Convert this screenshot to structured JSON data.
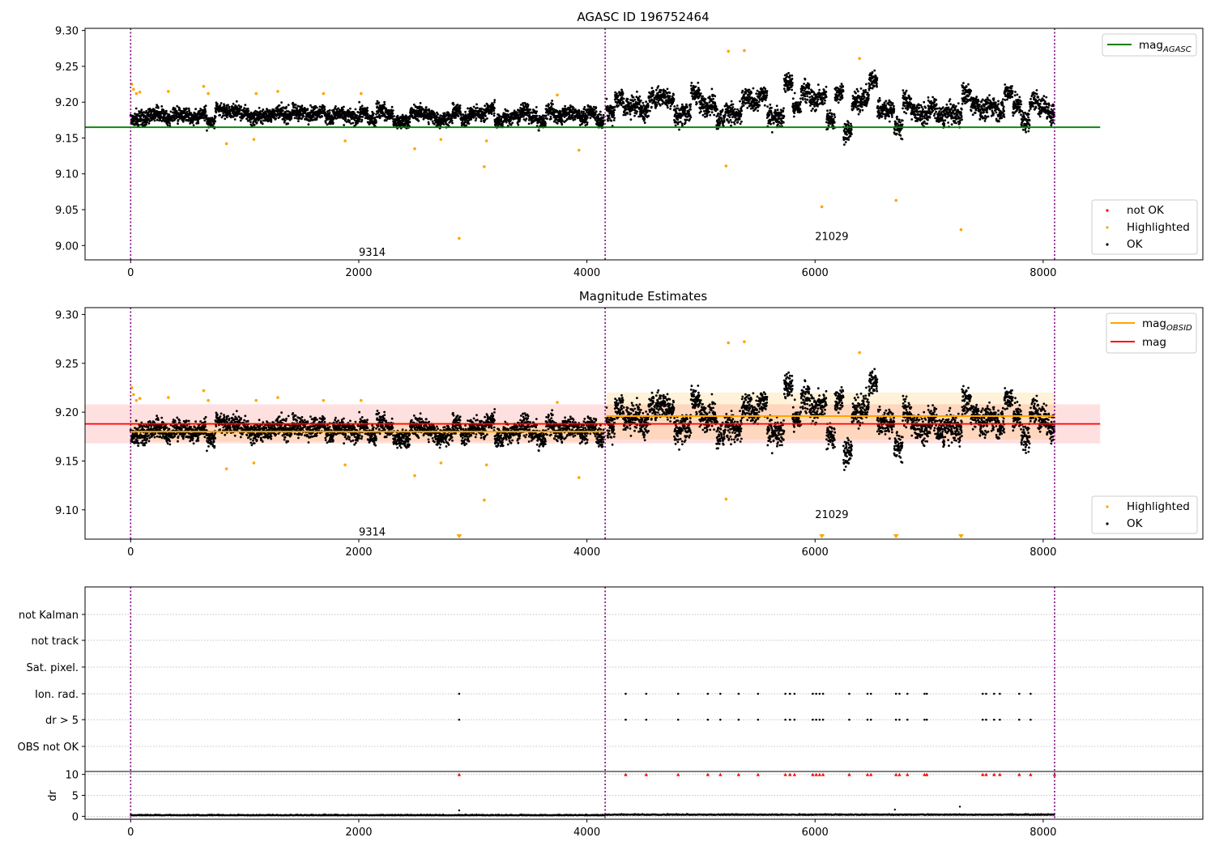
{
  "chart_data": [
    {
      "type": "scatter",
      "title": "AGASC ID 196752464",
      "xlim": [
        -400,
        9400
      ],
      "ylim": [
        8.98,
        9.303
      ],
      "xticks": [
        0,
        2000,
        4000,
        6000,
        8000
      ],
      "yticks": [
        9.0,
        9.05,
        9.1,
        9.15,
        9.2,
        9.25,
        9.3
      ],
      "ytick_labels": [
        "9.00",
        "9.05",
        "9.10",
        "9.15",
        "9.20",
        "9.25",
        "9.30"
      ],
      "xtick_labels": [
        "0",
        "2000",
        "4000",
        "6000",
        "8000"
      ],
      "observation_boundaries": [
        0,
        4160,
        8100
      ],
      "obsid_labels": [
        {
          "x": 2000,
          "y": 8.99,
          "text": "9314"
        },
        {
          "x": 6000,
          "y": 9.012,
          "text": "21029"
        }
      ],
      "reference_lines": [
        {
          "name": "mag_AGASC",
          "y": 9.165,
          "x": [
            -400,
            8500
          ],
          "color": "#008000"
        }
      ],
      "obs_segments": [
        {
          "x_start": 0,
          "x_end": 4150,
          "mean": 9.182,
          "spread": 0.01,
          "oscillation": 0.01
        },
        {
          "x_start": 4170,
          "x_end": 8100,
          "mean": 9.195,
          "spread": 0.014,
          "oscillation": 0.028
        }
      ],
      "highlighted_points": [
        {
          "x": 10,
          "y": 9.225
        },
        {
          "x": 25,
          "y": 9.218
        },
        {
          "x": 50,
          "y": 9.212
        },
        {
          "x": 80,
          "y": 9.214
        },
        {
          "x": 330,
          "y": 9.215
        },
        {
          "x": 640,
          "y": 9.222
        },
        {
          "x": 680,
          "y": 9.212
        },
        {
          "x": 840,
          "y": 9.142
        },
        {
          "x": 1080,
          "y": 9.148
        },
        {
          "x": 1100,
          "y": 9.212
        },
        {
          "x": 1290,
          "y": 9.215
        },
        {
          "x": 1690,
          "y": 9.212
        },
        {
          "x": 1880,
          "y": 9.146
        },
        {
          "x": 2020,
          "y": 9.212
        },
        {
          "x": 2490,
          "y": 9.135
        },
        {
          "x": 2720,
          "y": 9.148
        },
        {
          "x": 2880,
          "y": 9.01
        },
        {
          "x": 3100,
          "y": 9.11
        },
        {
          "x": 3120,
          "y": 9.146
        },
        {
          "x": 3740,
          "y": 9.21
        },
        {
          "x": 3930,
          "y": 9.133
        },
        {
          "x": 5220,
          "y": 9.111
        },
        {
          "x": 5240,
          "y": 9.271
        },
        {
          "x": 5380,
          "y": 9.272
        },
        {
          "x": 6060,
          "y": 9.054
        },
        {
          "x": 6390,
          "y": 9.261
        },
        {
          "x": 6710,
          "y": 9.063
        },
        {
          "x": 7280,
          "y": 9.022
        }
      ],
      "legend_lines": [
        {
          "label": "mag",
          "sub": "AGASC",
          "color": "#008000"
        }
      ],
      "legend_points": [
        {
          "label": "not OK",
          "color": "#ff0000"
        },
        {
          "label": "Highlighted",
          "color": "#ffa500"
        },
        {
          "label": "OK",
          "color": "#000000"
        }
      ]
    },
    {
      "type": "scatter",
      "title": "Magnitude Estimates",
      "xlim": [
        -400,
        9400
      ],
      "ylim": [
        9.07,
        9.307
      ],
      "xticks": [
        0,
        2000,
        4000,
        6000,
        8000
      ],
      "yticks": [
        9.1,
        9.15,
        9.2,
        9.25,
        9.3
      ],
      "ytick_labels": [
        "9.10",
        "9.15",
        "9.20",
        "9.25",
        "9.30"
      ],
      "xtick_labels": [
        "0",
        "2000",
        "4000",
        "6000",
        "8000"
      ],
      "observation_boundaries": [
        0,
        4160,
        8100
      ],
      "obsid_labels": [
        {
          "x": 2000,
          "y": 9.077,
          "text": "9314"
        },
        {
          "x": 6000,
          "y": 9.095,
          "text": "21029"
        }
      ],
      "overall_mag": {
        "name": "mag",
        "y": 9.188,
        "band": [
          9.168,
          9.208
        ],
        "x": [
          -400,
          8500
        ],
        "color": "#ff0000"
      },
      "obs_mags": [
        {
          "x": [
            0,
            4150
          ],
          "y": 9.18,
          "band": [
            9.17,
            9.19
          ]
        },
        {
          "x": [
            4170,
            8100
          ],
          "y": 9.196,
          "band": [
            9.172,
            9.22
          ]
        }
      ],
      "clipped_points_x": [
        2880,
        6060,
        6710,
        7280
      ],
      "legend_lines": [
        {
          "label": "mag",
          "sub": "OBSID",
          "color": "#ffa500"
        },
        {
          "label": "mag",
          "sub": "",
          "color": "#ff0000"
        }
      ],
      "legend_points": [
        {
          "label": "Highlighted",
          "color": "#ffa500"
        },
        {
          "label": "OK",
          "color": "#000000"
        }
      ]
    },
    {
      "type": "scatter",
      "title": "",
      "xlim": [
        -400,
        9400
      ],
      "flag_rows": [
        "not Kalman",
        "not track",
        "Sat. pixel.",
        "Ion. rad.",
        "dr > 5",
        "OBS not OK"
      ],
      "flag_x": [
        2880,
        4340,
        4520,
        4800,
        5060,
        5170,
        5330,
        5500,
        5740,
        5780,
        5820,
        5980,
        6010,
        6040,
        6070,
        6300,
        6460,
        6490,
        6710,
        6740,
        6810,
        6960,
        6980,
        7470,
        7500,
        7570,
        7620,
        7790,
        7890
      ],
      "observation_boundaries": [
        0,
        4160,
        8100
      ],
      "dr_ylabel": "dr",
      "dr_yticks": [
        0,
        5,
        10
      ],
      "dr_ylim": [
        -0.7,
        10.7
      ],
      "dr_clipped_x": [
        2880,
        4340,
        4520,
        4800,
        5060,
        5170,
        5330,
        5500,
        5740,
        5780,
        5820,
        5980,
        6010,
        6040,
        6070,
        6300,
        6460,
        6490,
        6710,
        6740,
        6810,
        6960,
        6980,
        7470,
        7500,
        7570,
        7620,
        7790,
        7890,
        8100
      ],
      "dr_outliers": [
        {
          "x": 2880,
          "y": 1.4
        },
        {
          "x": 7270,
          "y": 2.3
        },
        {
          "x": 6700,
          "y": 1.6
        }
      ],
      "xticks": [
        0,
        2000,
        4000,
        6000,
        8000
      ],
      "xtick_labels": [
        "0",
        "2000",
        "4000",
        "6000",
        "8000"
      ]
    }
  ]
}
